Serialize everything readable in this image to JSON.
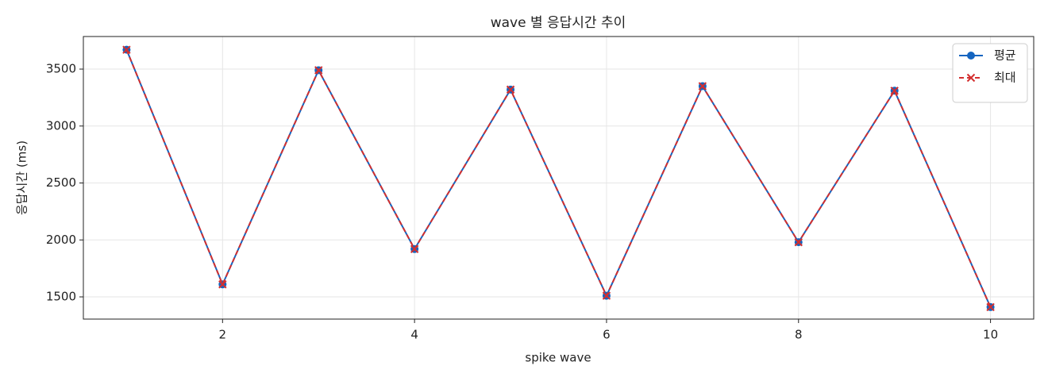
{
  "chart_data": {
    "type": "line",
    "title": "wave 별 응답시간 추이",
    "xlabel": "spike wave",
    "ylabel": "응답시간 (ms)",
    "x": [
      1,
      2,
      3,
      4,
      5,
      6,
      7,
      8,
      9,
      10
    ],
    "series": [
      {
        "name": "평균",
        "color": "#1565c0",
        "marker": "circle",
        "linestyle": "solid",
        "values": [
          3670,
          1610,
          3490,
          1920,
          3320,
          1510,
          3350,
          1980,
          3310,
          1410
        ]
      },
      {
        "name": "최대",
        "color": "#d32f2f",
        "marker": "x",
        "linestyle": "dashed",
        "values": [
          3670,
          1610,
          3490,
          1920,
          3320,
          1510,
          3350,
          1980,
          3310,
          1410
        ]
      }
    ],
    "xlim": [
      0.55,
      10.45
    ],
    "ylim": [
      1305,
      3786
    ],
    "xticks": [
      2,
      4,
      6,
      8,
      10
    ],
    "yticks": [
      1500,
      2000,
      2500,
      3000,
      3500
    ],
    "grid": true,
    "legend": "upper right"
  }
}
